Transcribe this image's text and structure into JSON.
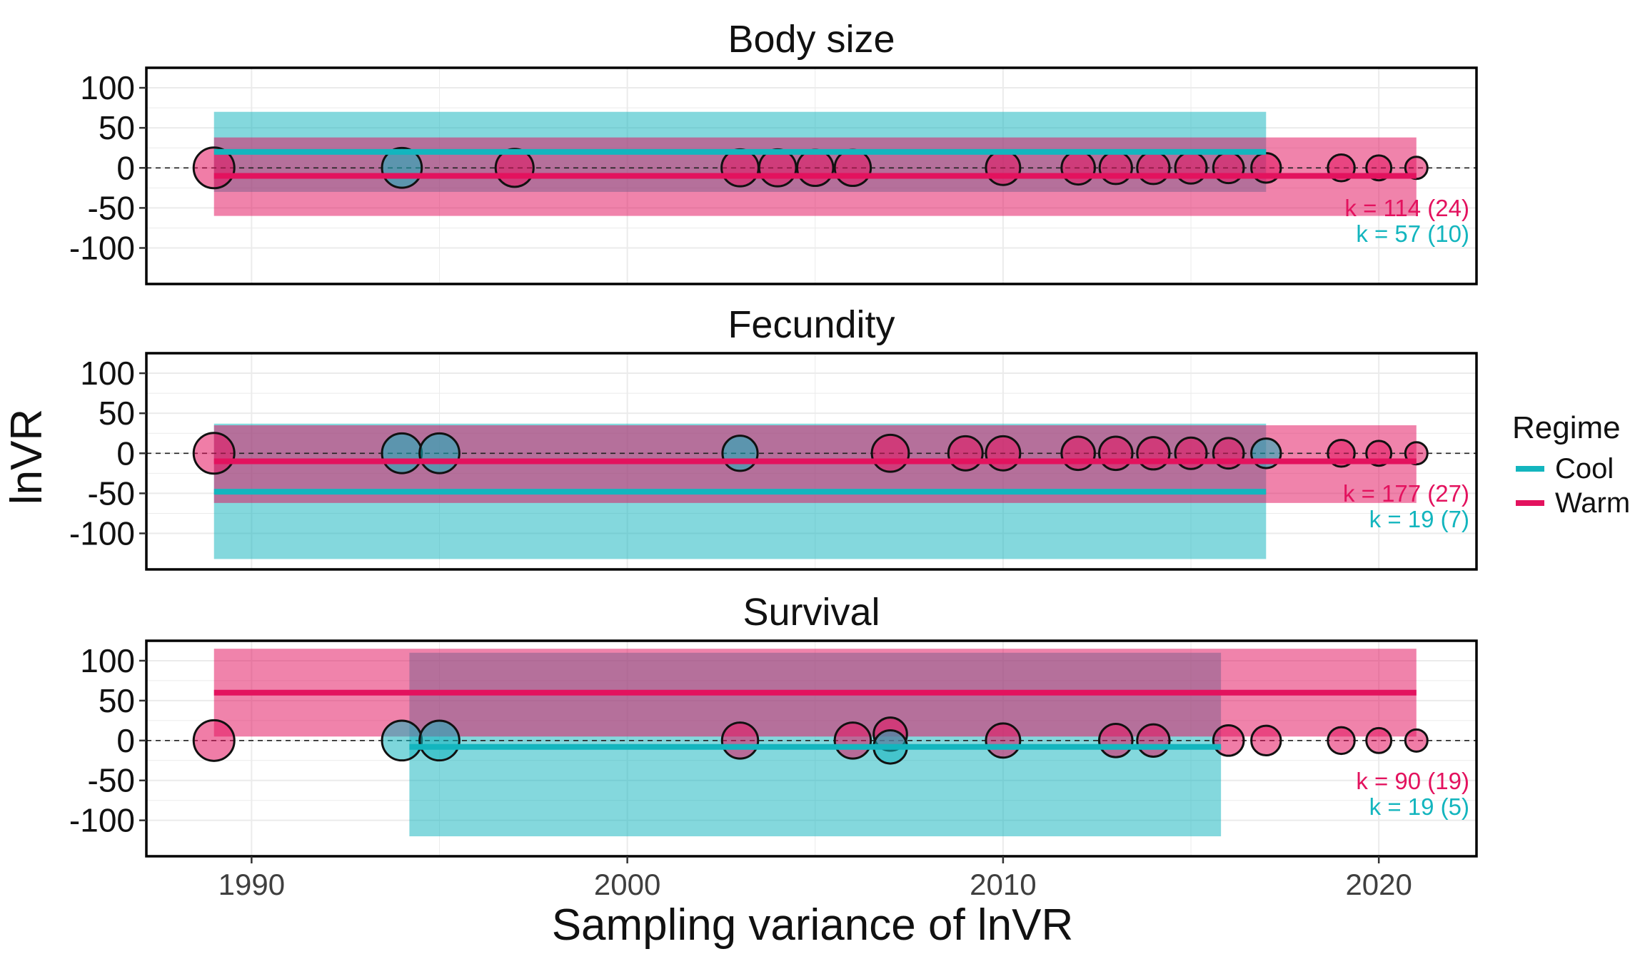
{
  "colors": {
    "cool": "#13B5BE",
    "warm": "#E3125E",
    "grid": "#EBEBEB"
  },
  "legend": {
    "title": "Regime",
    "items": [
      {
        "key": "cool",
        "label": "Cool"
      },
      {
        "key": "warm",
        "label": "Warm"
      }
    ]
  },
  "chart_data": {
    "type": "scatter",
    "xlabel": "Sampling variance of lnVR",
    "ylabel": "lnVR",
    "xlim": [
      1987.2,
      2022.6
    ],
    "xticks": [
      1990,
      2000,
      2010,
      2020
    ],
    "ylim": [
      -145,
      125
    ],
    "yticks": [
      100,
      50,
      0,
      -50,
      -100
    ],
    "grid": true,
    "legend_position": "right",
    "panels": [
      {
        "title": "Body size",
        "k_labels": [
          {
            "regime": "warm",
            "text": "k = 114 (24)"
          },
          {
            "regime": "cool",
            "text": "k = 57 (10)"
          }
        ],
        "series": [
          {
            "regime": "cool",
            "x": [
              1989,
              2017
            ],
            "estimate": 20,
            "ci": [
              -30,
              70
            ]
          },
          {
            "regime": "warm",
            "x": [
              1989,
              2021
            ],
            "estimate": -10,
            "ci": [
              -60,
              38
            ]
          }
        ],
        "points": [
          {
            "x": 1989,
            "y": 0,
            "regime": "warm",
            "size": 3.0
          },
          {
            "x": 1994,
            "y": 0,
            "regime": "cool",
            "size": 2.9
          },
          {
            "x": 1997,
            "y": 0,
            "regime": "warm",
            "size": 2.7
          },
          {
            "x": 2003,
            "y": 0,
            "regime": "warm",
            "size": 2.6
          },
          {
            "x": 2004,
            "y": 0,
            "regime": "warm",
            "size": 2.6
          },
          {
            "x": 2005,
            "y": 0,
            "regime": "warm",
            "size": 2.5
          },
          {
            "x": 2006,
            "y": 0,
            "regime": "warm",
            "size": 2.5
          },
          {
            "x": 2010,
            "y": 0,
            "regime": "warm",
            "size": 2.3
          },
          {
            "x": 2012,
            "y": 0,
            "regime": "warm",
            "size": 2.2
          },
          {
            "x": 2013,
            "y": 0,
            "regime": "warm",
            "size": 2.1
          },
          {
            "x": 2014,
            "y": 0,
            "regime": "warm",
            "size": 2.1
          },
          {
            "x": 2015,
            "y": 0,
            "regime": "warm",
            "size": 2.0
          },
          {
            "x": 2016,
            "y": 0,
            "regime": "warm",
            "size": 1.9
          },
          {
            "x": 2017,
            "y": 0,
            "regime": "warm",
            "size": 1.8
          },
          {
            "x": 2019,
            "y": 0,
            "regime": "warm",
            "size": 1.5
          },
          {
            "x": 2020,
            "y": 0,
            "regime": "warm",
            "size": 1.3
          },
          {
            "x": 2021,
            "y": 0,
            "regime": "warm",
            "size": 1.0
          }
        ]
      },
      {
        "title": "Fecundity",
        "k_labels": [
          {
            "regime": "warm",
            "text": "k = 177 (27)"
          },
          {
            "regime": "cool",
            "text": "k = 19 (7)"
          }
        ],
        "series": [
          {
            "regime": "cool",
            "x": [
              1989,
              2017
            ],
            "estimate": -48,
            "ci": [
              -132,
              37
            ]
          },
          {
            "regime": "warm",
            "x": [
              1989,
              2021
            ],
            "estimate": -10,
            "ci": [
              -62,
              35
            ]
          }
        ],
        "points": [
          {
            "x": 1989,
            "y": 0,
            "regime": "warm",
            "size": 3.0
          },
          {
            "x": 1994,
            "y": 0,
            "regime": "cool",
            "size": 2.9
          },
          {
            "x": 1995,
            "y": 0,
            "regime": "cool",
            "size": 2.9
          },
          {
            "x": 2003,
            "y": 0,
            "regime": "cool",
            "size": 2.4
          },
          {
            "x": 2007,
            "y": 0,
            "regime": "warm",
            "size": 2.6
          },
          {
            "x": 2009,
            "y": 0,
            "regime": "warm",
            "size": 2.3
          },
          {
            "x": 2010,
            "y": 0,
            "regime": "warm",
            "size": 2.3
          },
          {
            "x": 2012,
            "y": 0,
            "regime": "warm",
            "size": 2.2
          },
          {
            "x": 2013,
            "y": 0,
            "regime": "warm",
            "size": 2.2
          },
          {
            "x": 2014,
            "y": 0,
            "regime": "warm",
            "size": 2.1
          },
          {
            "x": 2015,
            "y": 0,
            "regime": "warm",
            "size": 2.0
          },
          {
            "x": 2016,
            "y": 0,
            "regime": "warm",
            "size": 1.9
          },
          {
            "x": 2017,
            "y": 0,
            "regime": "cool",
            "size": 1.8
          },
          {
            "x": 2019,
            "y": 0,
            "regime": "warm",
            "size": 1.5
          },
          {
            "x": 2020,
            "y": 0,
            "regime": "warm",
            "size": 1.3
          },
          {
            "x": 2021,
            "y": 0,
            "regime": "warm",
            "size": 1.0
          }
        ]
      },
      {
        "title": "Survival",
        "k_labels": [
          {
            "regime": "warm",
            "text": "k = 90 (19)"
          },
          {
            "regime": "cool",
            "text": "k = 19 (5)"
          }
        ],
        "series": [
          {
            "regime": "cool",
            "x": [
              1994.2,
              2015.8
            ],
            "estimate": -8,
            "ci": [
              -120,
              110
            ]
          },
          {
            "regime": "warm",
            "x": [
              1989,
              2021
            ],
            "estimate": 60,
            "ci": [
              5,
              115
            ]
          }
        ],
        "points": [
          {
            "x": 1989,
            "y": 0,
            "regime": "warm",
            "size": 3.0
          },
          {
            "x": 1994,
            "y": 0,
            "regime": "cool",
            "size": 2.9
          },
          {
            "x": 1995,
            "y": 0,
            "regime": "cool",
            "size": 2.9
          },
          {
            "x": 2003,
            "y": 0,
            "regime": "warm",
            "size": 2.5
          },
          {
            "x": 2006,
            "y": 0,
            "regime": "warm",
            "size": 2.5
          },
          {
            "x": 2007,
            "y": 8,
            "regime": "warm",
            "size": 2.2
          },
          {
            "x": 2007,
            "y": -8,
            "regime": "cool",
            "size": 2.2
          },
          {
            "x": 2010,
            "y": 0,
            "regime": "warm",
            "size": 2.3
          },
          {
            "x": 2013,
            "y": 0,
            "regime": "warm",
            "size": 2.2
          },
          {
            "x": 2014,
            "y": 0,
            "regime": "warm",
            "size": 2.1
          },
          {
            "x": 2016,
            "y": 0,
            "regime": "warm",
            "size": 1.9
          },
          {
            "x": 2017,
            "y": 0,
            "regime": "warm",
            "size": 1.8
          },
          {
            "x": 2019,
            "y": 0,
            "regime": "warm",
            "size": 1.5
          },
          {
            "x": 2020,
            "y": 0,
            "regime": "warm",
            "size": 1.3
          },
          {
            "x": 2021,
            "y": 0,
            "regime": "warm",
            "size": 1.0
          }
        ]
      }
    ]
  }
}
